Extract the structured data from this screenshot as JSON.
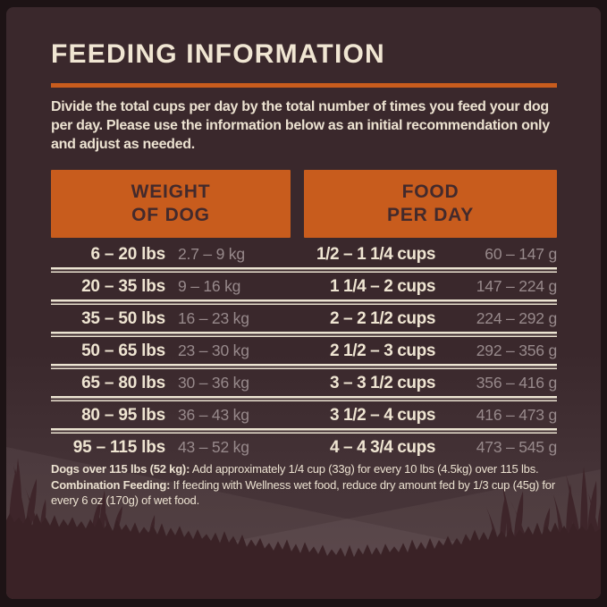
{
  "page": {
    "title": "FEEDING INFORMATION",
    "intro": "Divide the total cups per day by the total number of times you feed your dog per day. Please use the information below as an initial recommendation only and adjust as needed."
  },
  "table": {
    "headers": [
      {
        "line1": "WEIGHT",
        "line2": "OF DOG"
      },
      {
        "line1": "FOOD",
        "line2": "PER DAY"
      }
    ],
    "rows": [
      {
        "lbs": "6 – 20 lbs",
        "kg": "2.7 – 9 kg",
        "cups": "1/2 – 1 1/4 cups",
        "grams": "60 – 147 g"
      },
      {
        "lbs": "20 – 35 lbs",
        "kg": "9 – 16 kg",
        "cups": "1 1/4 – 2 cups",
        "grams": "147 – 224 g"
      },
      {
        "lbs": "35 – 50 lbs",
        "kg": "16 – 23 kg",
        "cups": "2 – 2 1/2 cups",
        "grams": "224 – 292 g"
      },
      {
        "lbs": "50 – 65 lbs",
        "kg": "23 – 30 kg",
        "cups": "2 1/2 – 3 cups",
        "grams": "292 – 356 g"
      },
      {
        "lbs": "65 – 80 lbs",
        "kg": "30 – 36 kg",
        "cups": "3 – 3 1/2 cups",
        "grams": "356 – 416 g"
      },
      {
        "lbs": "80 – 95 lbs",
        "kg": "36 – 43 kg",
        "cups": "3 1/2 – 4 cups",
        "grams": "416 – 473 g"
      },
      {
        "lbs": "95 – 115 lbs",
        "kg": "43 – 52 kg",
        "cups": "4 – 4 3/4 cups",
        "grams": "473 – 545 g"
      }
    ]
  },
  "footnote": {
    "lead1_bold": "Dogs over 115 lbs (52 kg):",
    "body1": " Add approximately 1/4 cup (33g) for every 10 lbs (4.5kg) over 115 lbs. ",
    "lead2_bold": "Combination Feeding:",
    "body2": " If feeding with Wellness wet food, reduce dry amount fed by 1/3 cup (45g) for every 6 oz (170g) of wet food."
  },
  "colors": {
    "accent_orange": "#c85c1d",
    "cream_text": "#efe5d2",
    "muted_metric_text": "#97898b",
    "background": "#3a282c",
    "header_text": "#432a2c"
  }
}
